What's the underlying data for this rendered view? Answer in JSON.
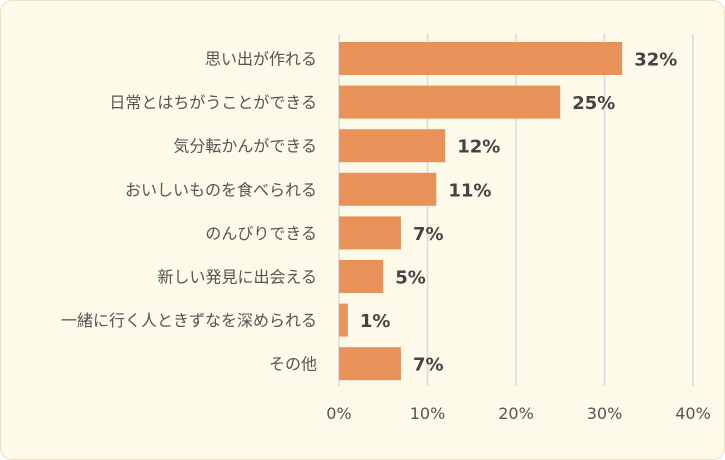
{
  "colors": {
    "background": "#fdfaea",
    "bar": "#e8925a",
    "grid": "#d9d9d9"
  },
  "chart_data": {
    "type": "bar",
    "orientation": "horizontal",
    "categories": [
      "思い出が作れる",
      "日常とはちがうことができる",
      "気分転かんができる",
      "おいしいものを食べられる",
      "のんびりできる",
      "新しい発見に出会える",
      "一緒に行く人ときずなを深められる",
      "その他"
    ],
    "values": [
      32,
      25,
      12,
      11,
      7,
      5,
      1,
      7
    ],
    "data_labels": [
      "32%",
      "25%",
      "12%",
      "11%",
      "7%",
      "5%",
      "1%",
      "7%"
    ],
    "xlim": [
      0,
      40
    ],
    "x_ticks": [
      0,
      10,
      20,
      30,
      40
    ],
    "x_tick_labels": [
      "0%",
      "10%",
      "20%",
      "30%",
      "40%"
    ],
    "grid": true,
    "legend": "none",
    "title": "",
    "xlabel": "",
    "ylabel": ""
  }
}
